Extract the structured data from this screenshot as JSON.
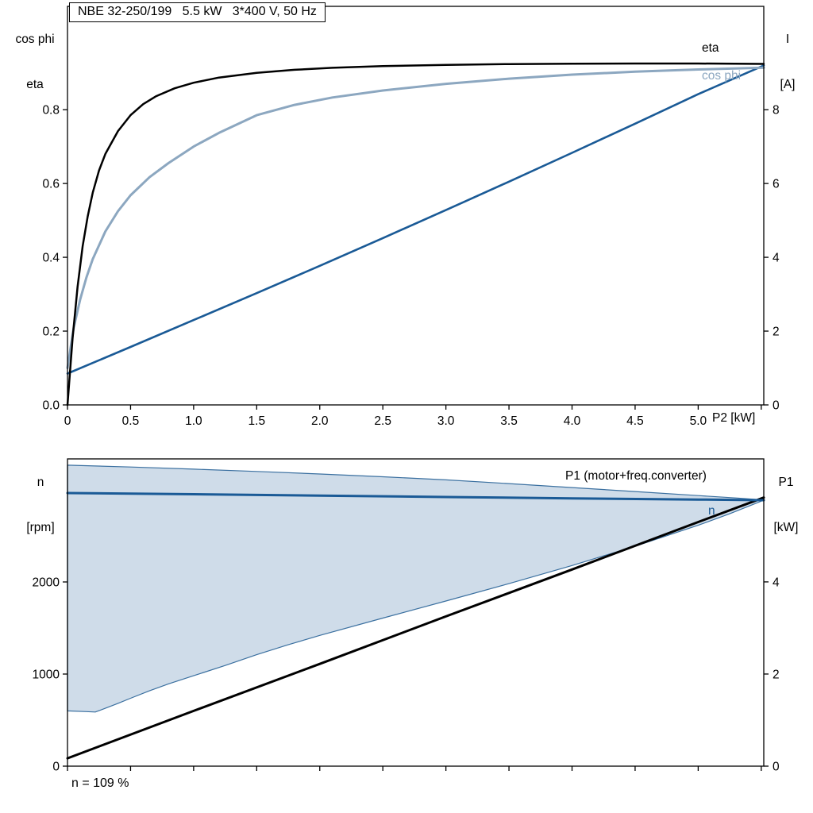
{
  "title_box": {
    "text": "NBE 32-250/199   5.5 kW   3*400 V, 50 Hz"
  },
  "labels": {
    "top_left_line1": "cos phi",
    "top_left_line2": "eta",
    "top_right_line1": "I",
    "top_right_line2": "[A]",
    "x_axis_label": "P2 [kW]",
    "eta_series": "eta",
    "cosphi_series": "cos phi",
    "bottom_left_line1": "n",
    "bottom_left_line2": "[rpm]",
    "bottom_right_line1": "P1",
    "bottom_right_line2": "[kW]",
    "p1_series": "P1 (motor+freq.converter)",
    "n_series": "n",
    "annotation": "n = 109 %"
  },
  "colors": {
    "black": "#000000",
    "steel_blue_light": "#8CA7C0",
    "steel_blue_dark": "#1A5A96",
    "area_fill": "#CFDCE9",
    "area_stroke": "#3B70A0"
  },
  "chart_data": [
    {
      "type": "line",
      "title": "NBE 32-250/199   5.5 kW   3*400 V, 50 Hz",
      "xlabel": "P2 [kW]",
      "xlim": [
        0,
        5.52
      ],
      "x_ticks": [
        0,
        0.5,
        1,
        1.5,
        2,
        2.5,
        3,
        3.5,
        4,
        4.5,
        5,
        5.5
      ],
      "x_tick_labels": [
        "0",
        "0.5",
        "1.0",
        "1.5",
        "2.0",
        "2.5",
        "3.0",
        "3.5",
        "4.0",
        "4.5",
        "5.0",
        ""
      ],
      "left_axis": {
        "label": "cos phi / eta",
        "lim": [
          0,
          1.08
        ],
        "ticks": [
          0,
          0.2,
          0.4,
          0.6,
          0.8
        ],
        "tick_labels": [
          "0.0",
          "0.2",
          "0.4",
          "0.6",
          "0.8"
        ]
      },
      "right_axis": {
        "label": "I [A]",
        "lim": [
          0,
          10.8
        ],
        "ticks": [
          0,
          2,
          4,
          6,
          8
        ],
        "tick_labels": [
          "0",
          "2",
          "4",
          "6",
          "8"
        ]
      },
      "grid": false,
      "series": [
        {
          "name": "I",
          "axis": "right",
          "color": "#1A5A96",
          "width": 2.6,
          "points": [
            [
              0,
              0.85
            ],
            [
              0.5,
              1.57
            ],
            [
              1.0,
              2.3
            ],
            [
              1.5,
              3.03
            ],
            [
              2.0,
              3.77
            ],
            [
              2.5,
              4.52
            ],
            [
              3.0,
              5.28
            ],
            [
              3.5,
              6.05
            ],
            [
              4.0,
              6.83
            ],
            [
              4.5,
              7.62
            ],
            [
              5.0,
              8.42
            ],
            [
              5.52,
              9.2
            ]
          ]
        },
        {
          "name": "cos phi",
          "axis": "left",
          "color": "#8CA7C0",
          "width": 3,
          "points": [
            [
              0,
              0.1
            ],
            [
              0.05,
              0.21
            ],
            [
              0.1,
              0.285
            ],
            [
              0.15,
              0.345
            ],
            [
              0.2,
              0.395
            ],
            [
              0.3,
              0.47
            ],
            [
              0.4,
              0.525
            ],
            [
              0.5,
              0.568
            ],
            [
              0.65,
              0.617
            ],
            [
              0.8,
              0.655
            ],
            [
              1.0,
              0.7
            ],
            [
              1.2,
              0.737
            ],
            [
              1.5,
              0.785
            ],
            [
              1.8,
              0.813
            ],
            [
              2.1,
              0.833
            ],
            [
              2.5,
              0.852
            ],
            [
              3.0,
              0.87
            ],
            [
              3.5,
              0.884
            ],
            [
              4.0,
              0.895
            ],
            [
              4.5,
              0.903
            ],
            [
              5.0,
              0.909
            ],
            [
              5.52,
              0.914
            ]
          ]
        },
        {
          "name": "eta",
          "axis": "left",
          "color": "#000000",
          "width": 2.5,
          "points": [
            [
              0,
              0
            ],
            [
              0.04,
              0.18
            ],
            [
              0.08,
              0.32
            ],
            [
              0.12,
              0.43
            ],
            [
              0.16,
              0.51
            ],
            [
              0.2,
              0.575
            ],
            [
              0.25,
              0.635
            ],
            [
              0.3,
              0.68
            ],
            [
              0.4,
              0.742
            ],
            [
              0.5,
              0.785
            ],
            [
              0.6,
              0.815
            ],
            [
              0.7,
              0.836
            ],
            [
              0.85,
              0.858
            ],
            [
              1.0,
              0.873
            ],
            [
              1.2,
              0.887
            ],
            [
              1.5,
              0.9
            ],
            [
              1.8,
              0.908
            ],
            [
              2.1,
              0.9135
            ],
            [
              2.5,
              0.918
            ],
            [
              3.0,
              0.9215
            ],
            [
              3.5,
              0.9235
            ],
            [
              4.0,
              0.9245
            ],
            [
              4.5,
              0.925
            ],
            [
              5.0,
              0.925
            ],
            [
              5.52,
              0.924
            ]
          ]
        }
      ]
    },
    {
      "type": "line",
      "xlabel": "",
      "xlim": [
        0,
        5.52
      ],
      "x_ticks": [
        0,
        0.5,
        1,
        1.5,
        2,
        2.5,
        3,
        3.5,
        4,
        4.5,
        5,
        5.5
      ],
      "x_tick_labels": [
        "",
        "",
        "",
        "",
        "",
        "",
        "",
        "",
        "",
        "",
        "",
        ""
      ],
      "left_axis": {
        "label": "n [rpm]",
        "lim": [
          0,
          3336
        ],
        "ticks": [
          0,
          1000,
          2000
        ],
        "tick_labels": [
          "0",
          "1000",
          "2000"
        ]
      },
      "right_axis": {
        "label": "P1 [kW]",
        "lim": [
          0,
          6.67
        ],
        "ticks": [
          0,
          2,
          4
        ],
        "tick_labels": [
          "0",
          "2",
          "4"
        ]
      },
      "grid": false,
      "annotation": "n = 109 %",
      "area": {
        "name": "speed-operating-range",
        "fill": "#CFDCE9",
        "stroke": "#3B70A0",
        "stroke_width": 1.2,
        "upper": [
          [
            0,
            3268
          ],
          [
            0.5,
            3248
          ],
          [
            1.0,
            3225
          ],
          [
            1.5,
            3200
          ],
          [
            2.0,
            3172
          ],
          [
            2.5,
            3142
          ],
          [
            3.0,
            3108
          ],
          [
            3.5,
            3068
          ],
          [
            4.0,
            3025
          ],
          [
            4.5,
            2982
          ],
          [
            5.0,
            2938
          ],
          [
            5.3,
            2912
          ],
          [
            5.52,
            2890
          ]
        ],
        "lower": [
          [
            0,
            600
          ],
          [
            0.15,
            592
          ],
          [
            0.22,
            588
          ],
          [
            0.3,
            628
          ],
          [
            0.4,
            682
          ],
          [
            0.5,
            737
          ],
          [
            0.65,
            818
          ],
          [
            0.8,
            893
          ],
          [
            1.0,
            982
          ],
          [
            1.25,
            1093
          ],
          [
            1.5,
            1210
          ],
          [
            1.75,
            1318
          ],
          [
            2.0,
            1420
          ],
          [
            2.5,
            1608
          ],
          [
            3.0,
            1793
          ],
          [
            3.5,
            1982
          ],
          [
            4.0,
            2178
          ],
          [
            4.5,
            2388
          ],
          [
            5.0,
            2615
          ],
          [
            5.25,
            2740
          ],
          [
            5.52,
            2888
          ]
        ]
      },
      "series": [
        {
          "name": "P1 (motor+freq.converter)",
          "axis": "right",
          "color": "#000000",
          "width": 3,
          "points": [
            [
              0,
              0.17
            ],
            [
              1.0,
              1.2
            ],
            [
              2.0,
              2.22
            ],
            [
              3.0,
              3.25
            ],
            [
              4.0,
              4.27
            ],
            [
              5.0,
              5.3
            ],
            [
              5.52,
              5.83
            ]
          ]
        },
        {
          "name": "n",
          "axis": "left",
          "color": "#1A5A96",
          "width": 3,
          "points": [
            [
              0,
              2965
            ],
            [
              1.0,
              2952
            ],
            [
              2.0,
              2938
            ],
            [
              3.0,
              2922
            ],
            [
              4.0,
              2908
            ],
            [
              5.0,
              2895
            ],
            [
              5.52,
              2888
            ]
          ]
        }
      ]
    }
  ]
}
